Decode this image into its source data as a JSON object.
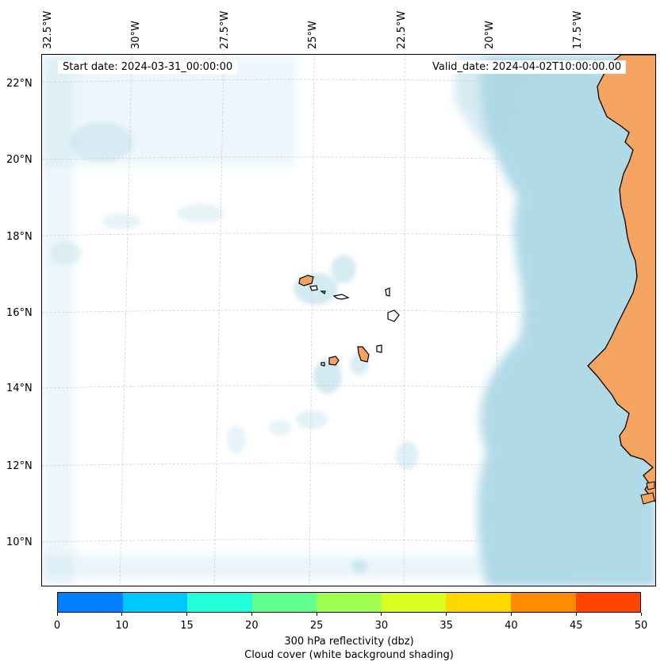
{
  "map": {
    "start_date": "Start date: 2024-03-31_00:00:00",
    "valid_date": "Valid_date: 2024-04-02T10:00:00.00",
    "longitude_labels": [
      "32.5°W",
      "30°W",
      "27.5°W",
      "25°W",
      "22.5°W",
      "20°W",
      "17.5°W"
    ],
    "latitude_labels": [
      "22°N",
      "20°N",
      "18°N",
      "16°N",
      "14°N",
      "12°N",
      "10°N"
    ],
    "land_color": "#f4a460",
    "cloud_color": "#add8e6",
    "islands": [
      "Santo Antão",
      "São Vicente",
      "São Nicolau",
      "Sal",
      "Boa Vista",
      "Maio",
      "Santiago",
      "Fogo",
      "Brava"
    ]
  },
  "colorbar": {
    "ticks": [
      "0",
      "10",
      "15",
      "20",
      "25",
      "30",
      "35",
      "40",
      "45",
      "50"
    ],
    "colors": [
      "#0080ff",
      "#00c8ff",
      "#20ffd8",
      "#60ff90",
      "#a0ff50",
      "#d8ff20",
      "#ffd800",
      "#ff8c00",
      "#ff4500"
    ],
    "label": "300 hPa reflectivity (dbz)",
    "sublabel": "Cloud cover (white background shading)"
  }
}
